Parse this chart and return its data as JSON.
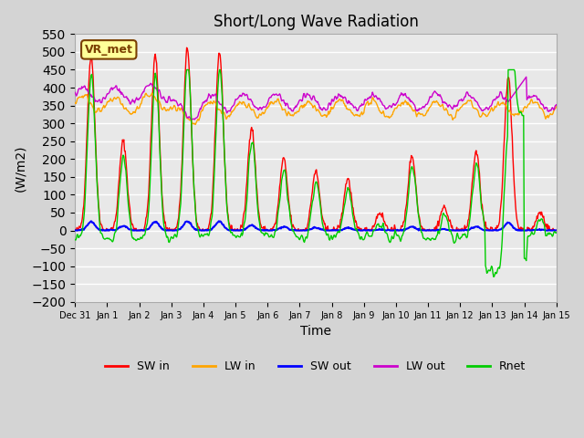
{
  "title": "Short/Long Wave Radiation",
  "xlabel": "Time",
  "ylabel": "(W/m2)",
  "ylim": [
    -200,
    550
  ],
  "xlim_days": 15,
  "annotation": "VR_met",
  "bg_color": "#e8e8e8",
  "plot_bg": "#e8e8e8",
  "legend": [
    "SW in",
    "LW in",
    "SW out",
    "LW out",
    "Rnet"
  ],
  "colors": {
    "SW_in": "#ff0000",
    "LW_in": "#ffa500",
    "SW_out": "#0000ff",
    "LW_out": "#cc00cc",
    "Rnet": "#00cc00"
  },
  "tick_labels": [
    "Dec 31",
    "Jan 1",
    "Jan 2",
    "Jan 3",
    "Jan 4",
    "Jan 5",
    "Jan 6",
    "Jan 7",
    "Jan 8",
    "Jan 9",
    "Jan 10",
    "Jan 11",
    "Jan 12",
    "Jan 13",
    "Jan 14",
    "Jan 15"
  ],
  "yticks": [
    -200,
    -150,
    -100,
    -50,
    0,
    50,
    100,
    150,
    200,
    250,
    300,
    350,
    400,
    450,
    500,
    550
  ]
}
